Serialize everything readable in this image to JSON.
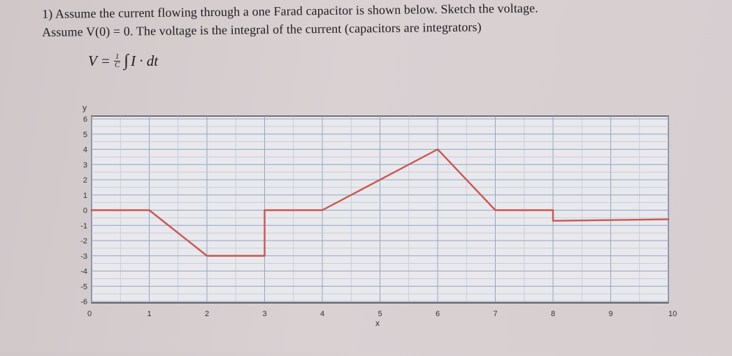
{
  "question": {
    "line1": "1) Assume the current flowing through a one Farad capacitor is shown below. Sketch the voltage.",
    "line2": "Assume V(0) = 0. The voltage is the integral of the current (capacitors are integrators)"
  },
  "formula": {
    "lhs": "V =",
    "frac_num": "1",
    "frac_den": "C",
    "integral": "∫",
    "rhs": "I · dt"
  },
  "chart_data": {
    "type": "line",
    "xlabel": "x",
    "ylabel": "y",
    "xlim": [
      0,
      10
    ],
    "ylim": [
      -6,
      6
    ],
    "x_ticks": [
      "0",
      "1",
      "2",
      "3",
      "4",
      "5",
      "6",
      "7",
      "8",
      "9",
      "10"
    ],
    "y_ticks": [
      "6",
      "5",
      "4",
      "3",
      "2",
      "1",
      "0",
      "-1",
      "-2",
      "-3",
      "-4",
      "-5",
      "-6"
    ],
    "grid": true,
    "line_color": "#c8574f",
    "series": [
      {
        "x": [
          0,
          1,
          2,
          3,
          3,
          4,
          6,
          7,
          8,
          8,
          10
        ],
        "y": [
          0,
          0,
          -3,
          -3,
          0,
          0,
          4,
          0,
          0,
          -0.7,
          -0.6
        ]
      }
    ]
  }
}
